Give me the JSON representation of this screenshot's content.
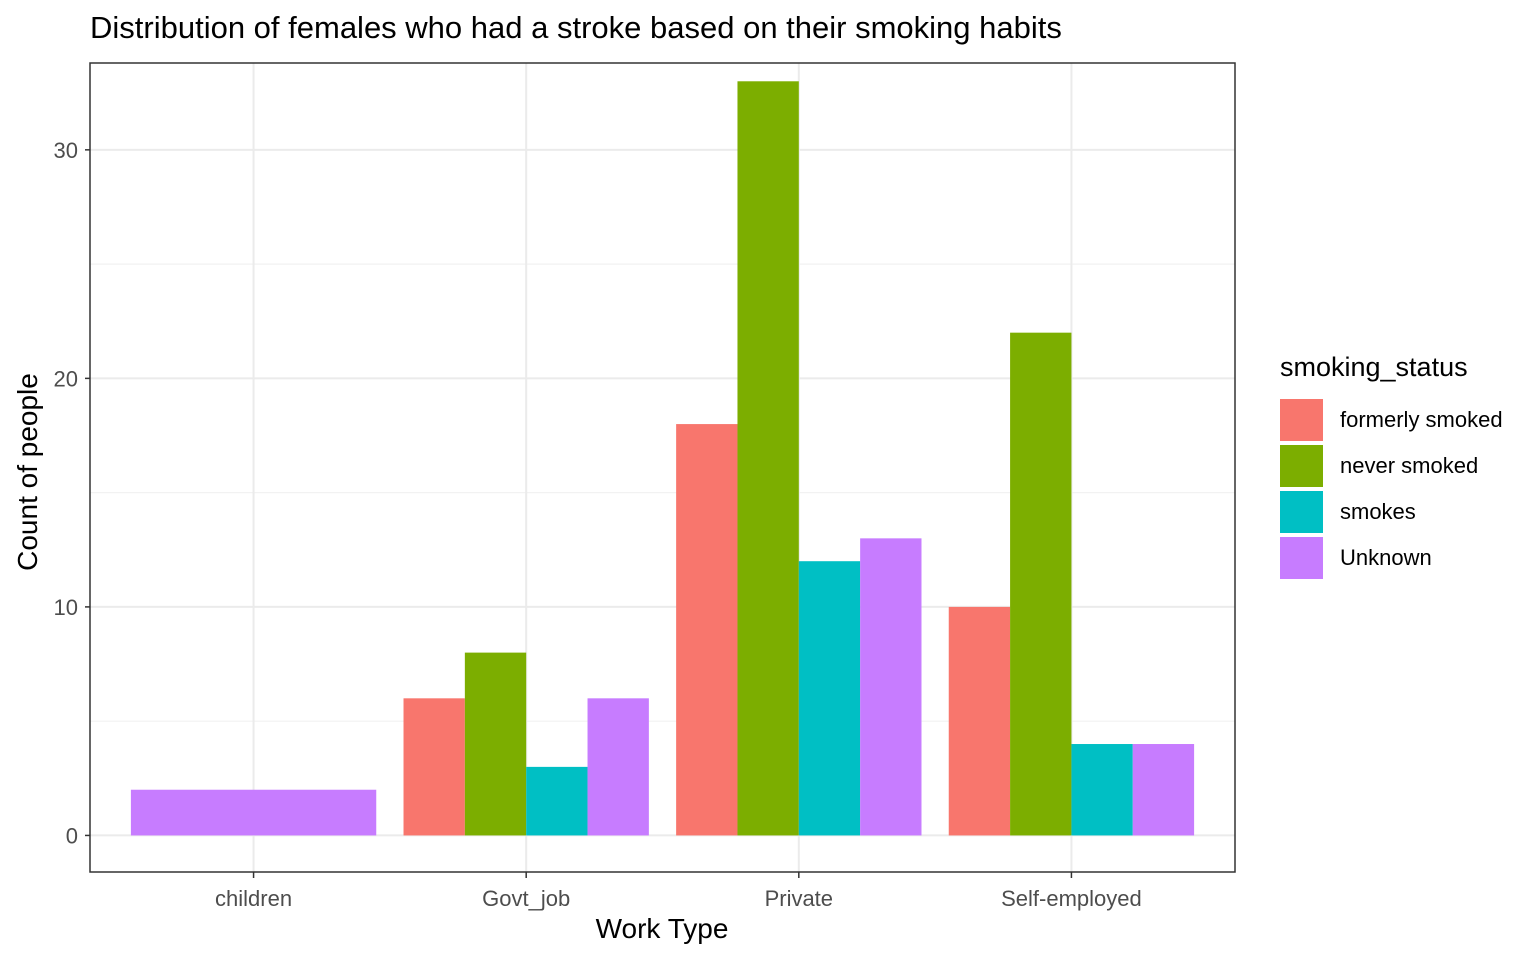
{
  "chart_data": {
    "type": "bar",
    "title": "Distribution of females who had a stroke based on their smoking habits",
    "xlabel": "Work Type",
    "ylabel": "Count of people",
    "categories": [
      "children",
      "Govt_job",
      "Private",
      "Self-employed"
    ],
    "ylim": [
      -1.6,
      33.8
    ],
    "yticks": [
      0,
      10,
      20,
      30
    ],
    "grid": true,
    "legend_title": "smoking_status",
    "legend_position": "right",
    "series": [
      {
        "name": "formerly smoked",
        "color": "#F8766D",
        "values": [
          null,
          6,
          18,
          10
        ]
      },
      {
        "name": "never smoked",
        "color": "#7CAE00",
        "values": [
          null,
          8,
          33,
          22
        ]
      },
      {
        "name": "smokes",
        "color": "#00BFC4",
        "values": [
          null,
          3,
          12,
          4
        ]
      },
      {
        "name": "Unknown",
        "color": "#C77CFF",
        "values": [
          2,
          6,
          13,
          4
        ]
      }
    ]
  }
}
